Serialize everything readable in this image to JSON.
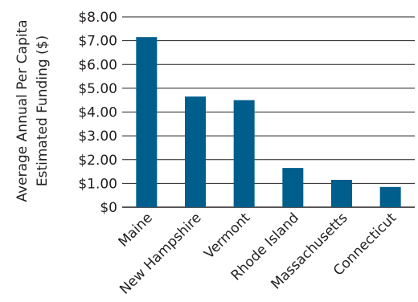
{
  "chart_data": {
    "type": "bar",
    "categories": [
      "Maine",
      "New Hampshire",
      "Vermont",
      "Rhode Island",
      "Massachusetts",
      "Connecticut"
    ],
    "values": [
      7.15,
      4.65,
      4.5,
      1.65,
      1.15,
      0.85
    ],
    "ylabel_lines": [
      "Average Annual Per Capita",
      "Estimated Funding ($)"
    ],
    "y_ticks": [
      "$0",
      "$1.00",
      "$2.00",
      "$3.00",
      "$4.00",
      "$5.00",
      "$6.00",
      "$7.00",
      "$8.00"
    ],
    "ylim": [
      0,
      8
    ],
    "grid": true,
    "bar_color": "#005e8c",
    "grid_color": "#231f20"
  }
}
